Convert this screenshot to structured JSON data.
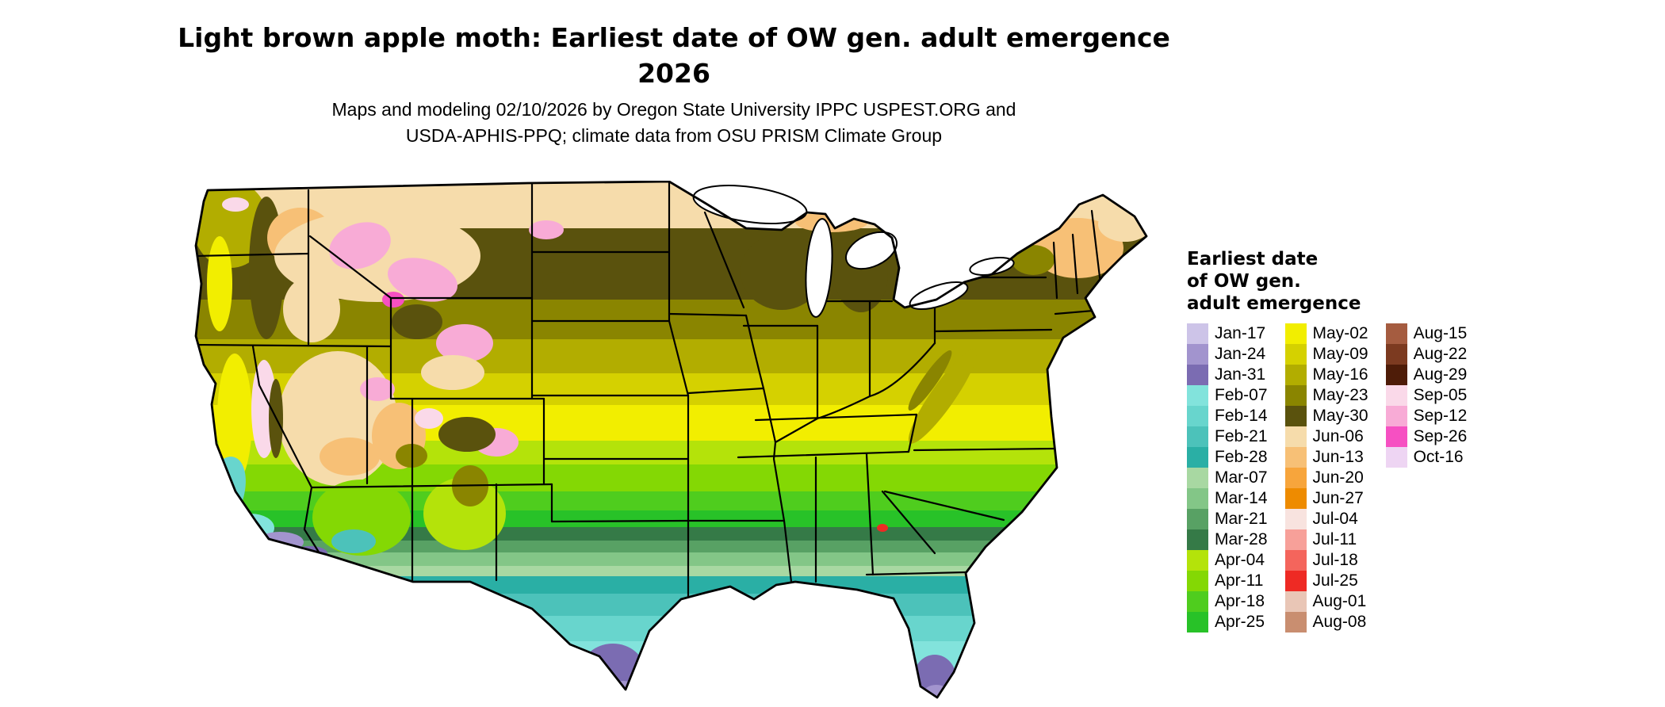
{
  "title": {
    "line1": "Light brown apple moth: Earliest date of OW gen. adult emergence",
    "line2": "2026"
  },
  "subtitle": {
    "line1": "Maps and modeling 02/10/2026 by Oregon State University IPPC USPEST.ORG and",
    "line2": "USDA-APHIS-PPQ; climate data from OSU PRISM Climate Group"
  },
  "legend": {
    "title_line1": "Earliest date",
    "title_line2": "of OW gen.",
    "title_line3": "adult emergence",
    "columns": [
      {
        "entries": [
          {
            "label": "Jan-17",
            "color": "#cdc4e8"
          },
          {
            "label": "Jan-24",
            "color": "#a294ce"
          },
          {
            "label": "Jan-31",
            "color": "#7b6cb2"
          },
          {
            "label": "Feb-07",
            "color": "#82e3dc"
          },
          {
            "label": "Feb-14",
            "color": "#68d5cd"
          },
          {
            "label": "Feb-21",
            "color": "#4cc2ba"
          },
          {
            "label": "Feb-28",
            "color": "#2aafa5"
          },
          {
            "label": "Mar-07",
            "color": "#a8d8a2"
          },
          {
            "label": "Mar-14",
            "color": "#83c687"
          },
          {
            "label": "Mar-21",
            "color": "#58a164"
          },
          {
            "label": "Mar-28",
            "color": "#357a47"
          },
          {
            "label": "Apr-04",
            "color": "#b4e30a"
          },
          {
            "label": "Apr-11",
            "color": "#84d804"
          },
          {
            "label": "Apr-18",
            "color": "#4fcd1e"
          },
          {
            "label": "Apr-25",
            "color": "#28c228"
          }
        ]
      },
      {
        "entries": [
          {
            "label": "May-02",
            "color": "#f2ee00"
          },
          {
            "label": "May-09",
            "color": "#d5d100"
          },
          {
            "label": "May-16",
            "color": "#b2ad00"
          },
          {
            "label": "May-23",
            "color": "#8a8500"
          },
          {
            "label": "May-30",
            "color": "#5a520d"
          },
          {
            "label": "Jun-06",
            "color": "#f6dcab"
          },
          {
            "label": "Jun-13",
            "color": "#f7c076"
          },
          {
            "label": "Jun-20",
            "color": "#f7a53c"
          },
          {
            "label": "Jun-27",
            "color": "#ee8b00"
          },
          {
            "label": "Jul-04",
            "color": "#f8e3df"
          },
          {
            "label": "Jul-11",
            "color": "#f7a099"
          },
          {
            "label": "Jul-18",
            "color": "#f4655c"
          },
          {
            "label": "Jul-25",
            "color": "#ee2a24"
          },
          {
            "label": "Aug-01",
            "color": "#e9c6b6"
          },
          {
            "label": "Aug-08",
            "color": "#c98e70"
          }
        ]
      },
      {
        "entries": [
          {
            "label": "Aug-15",
            "color": "#a55c40"
          },
          {
            "label": "Aug-22",
            "color": "#7c3a20"
          },
          {
            "label": "Aug-29",
            "color": "#4e1c08"
          },
          {
            "label": "Sep-05",
            "color": "#fad9e9"
          },
          {
            "label": "Sep-12",
            "color": "#f8abd6"
          },
          {
            "label": "Sep-26",
            "color": "#f650c2"
          },
          {
            "label": "Oct-16",
            "color": "#eed5f3"
          }
        ]
      }
    ]
  },
  "map": {
    "band_dates_north_to_south": [
      "Jun-06",
      "May-30",
      "May-23",
      "May-16",
      "May-09",
      "May-02",
      "Apr-04",
      "Apr-11",
      "Apr-18",
      "Apr-25",
      "Mar-28",
      "Mar-21",
      "Mar-14",
      "Mar-07",
      "Feb-28",
      "Feb-21",
      "Feb-14",
      "Feb-07",
      "Jan-31",
      "Jan-24"
    ]
  }
}
